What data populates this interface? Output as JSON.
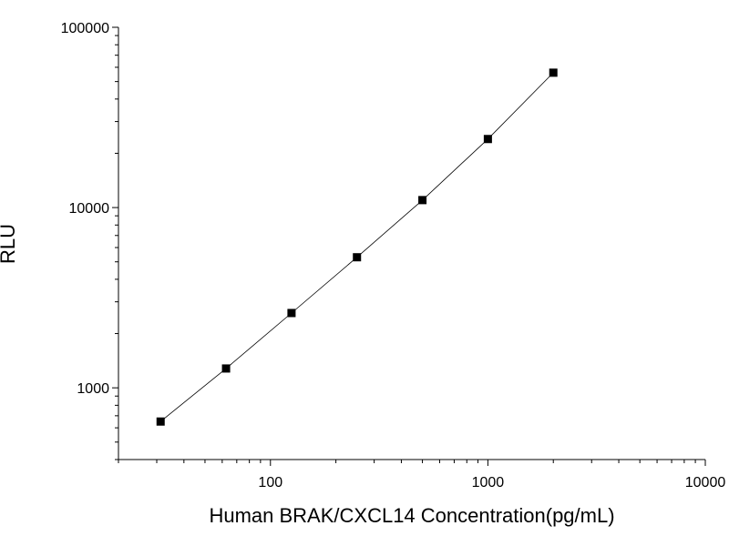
{
  "chart_data": {
    "type": "line",
    "title": "",
    "xlabel": "Human BRAK/CXCL14 Concentration(pg/mL)",
    "ylabel": "RLU",
    "x_scale": "log",
    "y_scale": "log",
    "xlim": [
      20,
      10000
    ],
    "ylim": [
      400,
      100000
    ],
    "x_ticks": [
      {
        "value": 100,
        "label": "100"
      },
      {
        "value": 1000,
        "label": "1000"
      },
      {
        "value": 10000,
        "label": "10000"
      }
    ],
    "y_ticks": [
      {
        "value": 1000,
        "label": "1000"
      },
      {
        "value": 10000,
        "label": "10000"
      },
      {
        "value": 100000,
        "label": "100000"
      }
    ],
    "grid": false,
    "legend": "none",
    "marker": "square",
    "series": [
      {
        "x": [
          31.25,
          62.5,
          125,
          250,
          500,
          1000,
          2000
        ],
        "y": [
          650,
          1280,
          2600,
          5300,
          11000,
          24000,
          56000
        ]
      }
    ],
    "colors": {
      "line": "#000000",
      "marker": "#000000",
      "axis": "#000000"
    }
  }
}
